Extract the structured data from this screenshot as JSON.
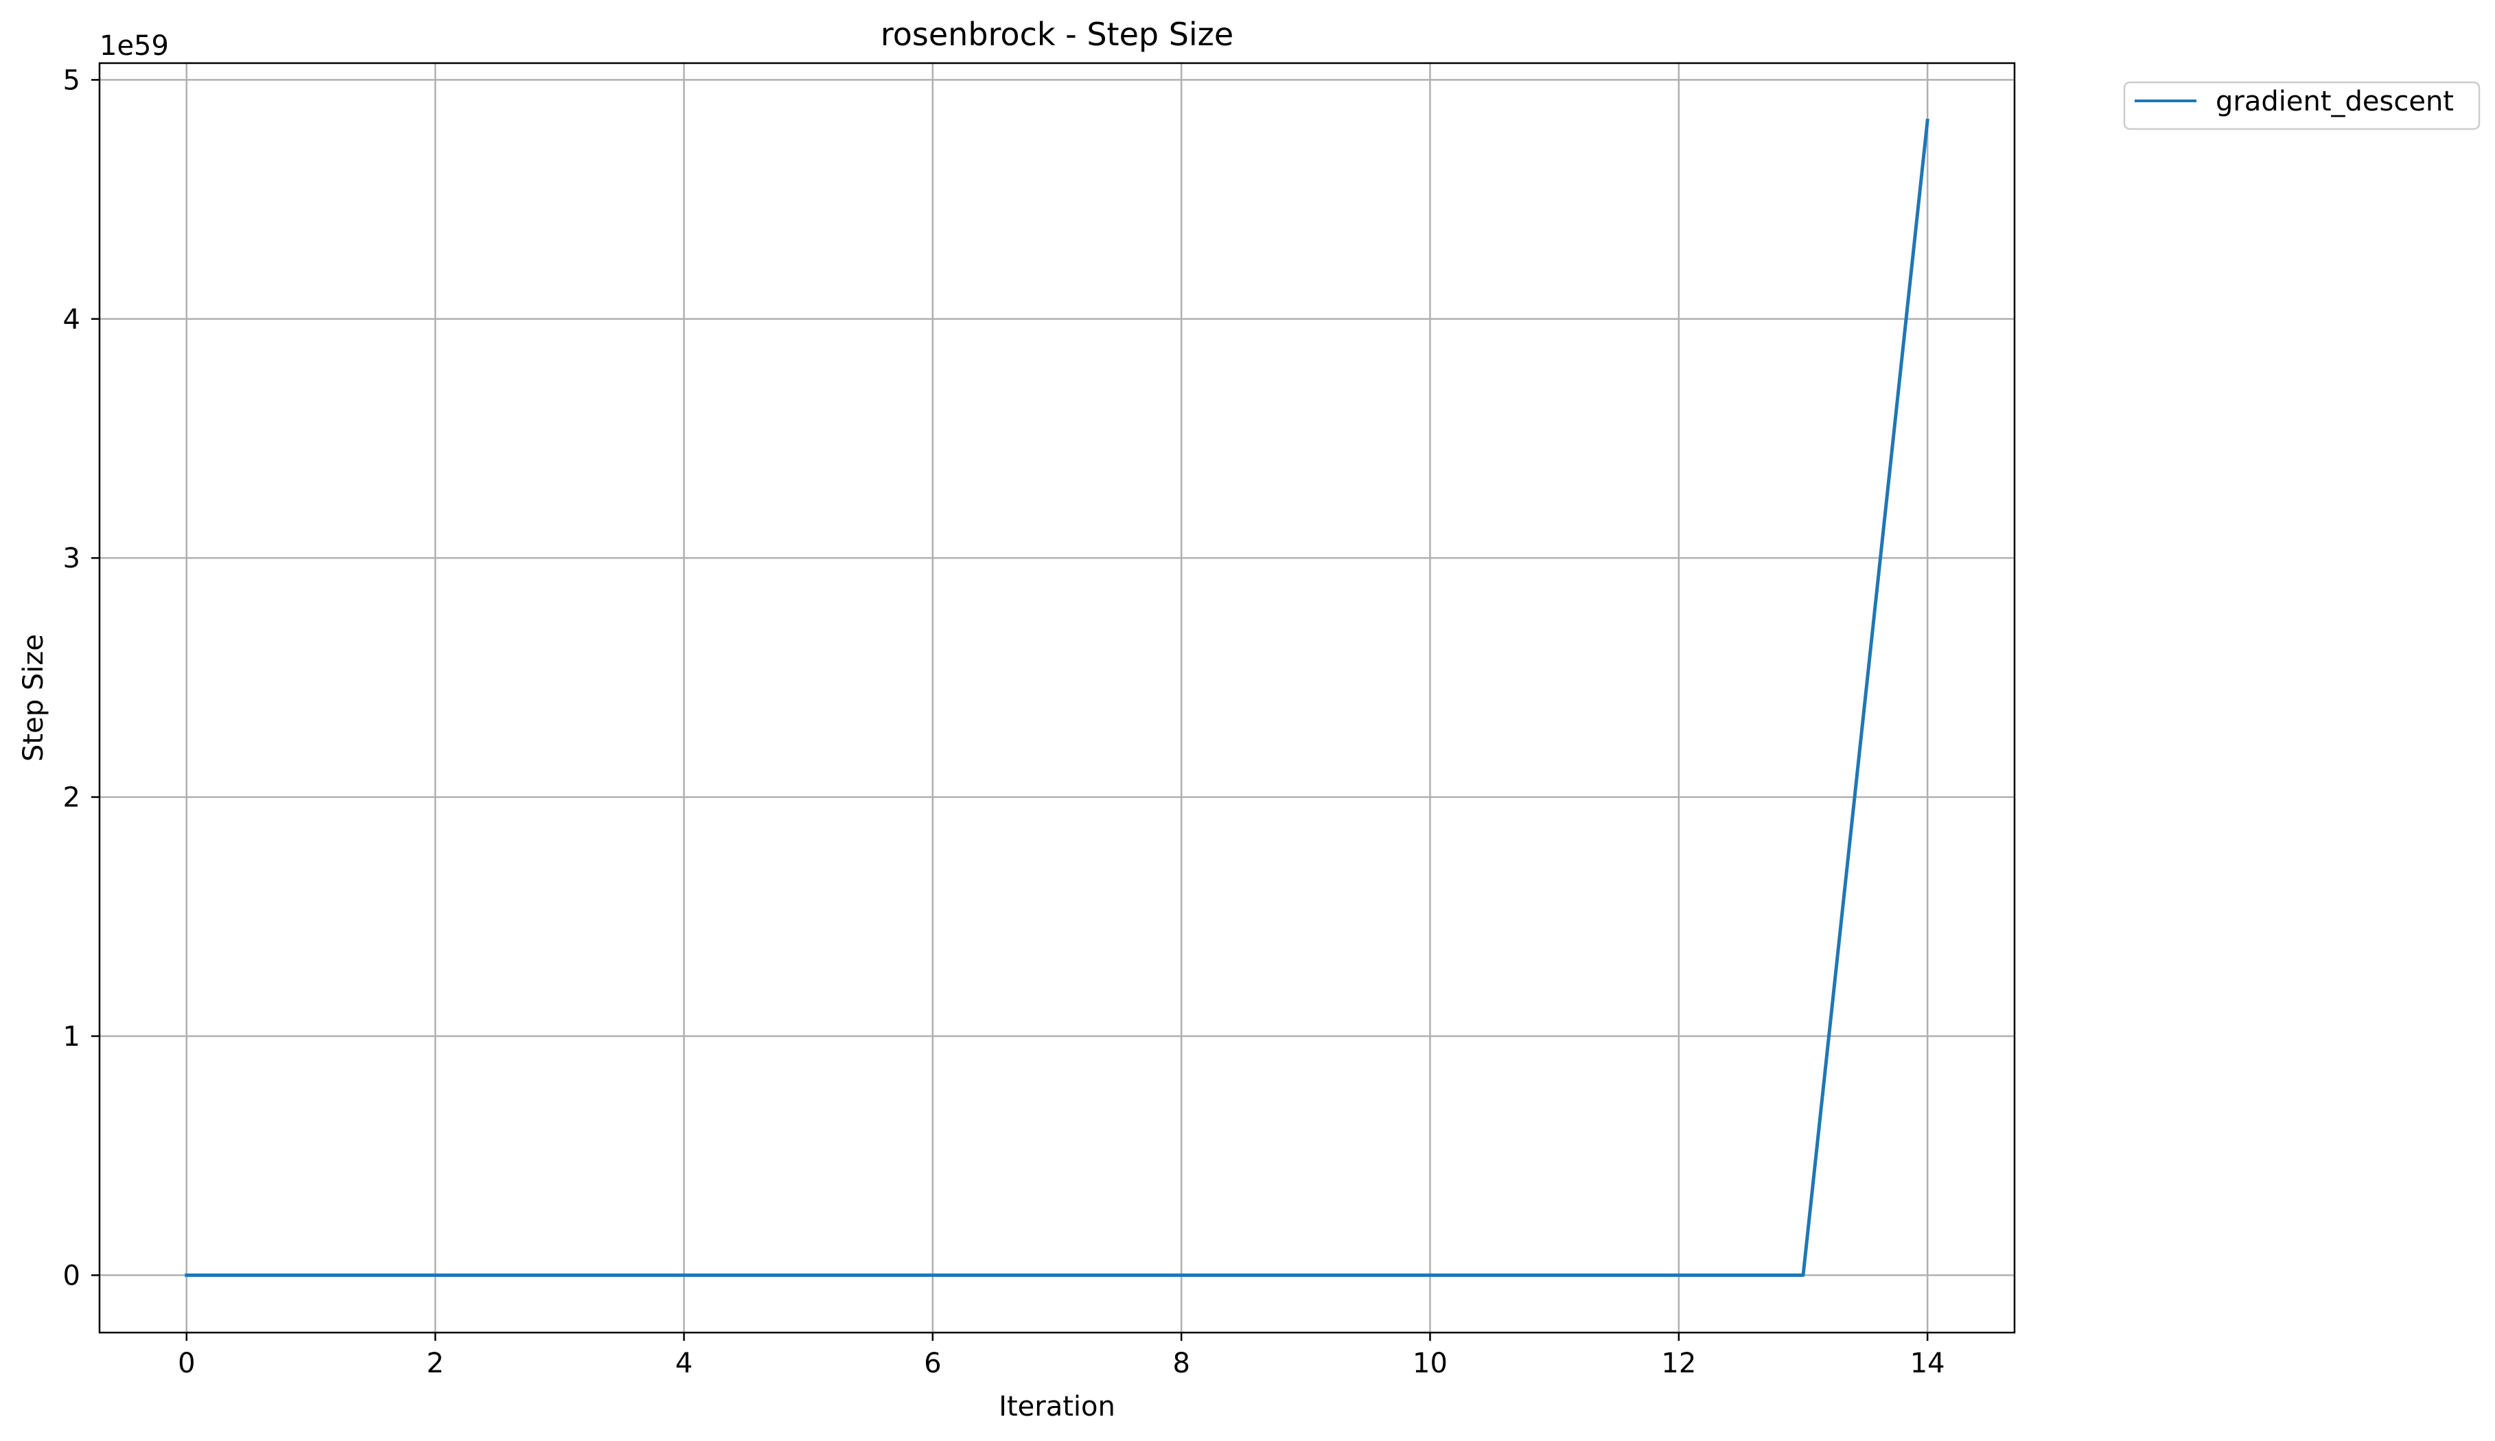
{
  "chart_data": {
    "type": "line",
    "title": "rosenbrock - Step Size",
    "xlabel": "Iteration",
    "ylabel": "Step Size",
    "y_offset_label": "1e59",
    "xlim": [
      -0.7,
      14.7
    ],
    "ylim": [
      -0.24,
      5.07
    ],
    "x_ticks": [
      0,
      2,
      4,
      6,
      8,
      10,
      12,
      14
    ],
    "x_tick_labels": [
      "0",
      "2",
      "4",
      "6",
      "8",
      "10",
      "12",
      "14"
    ],
    "y_ticks": [
      0,
      1,
      2,
      3,
      4,
      5
    ],
    "y_tick_labels": [
      "0",
      "1",
      "2",
      "3",
      "4",
      "5"
    ],
    "grid": true,
    "legend_position": "outside upper right",
    "x": [
      0,
      1,
      2,
      3,
      4,
      5,
      6,
      7,
      8,
      9,
      10,
      11,
      12,
      13,
      14
    ],
    "series": [
      {
        "name": "gradient_descent",
        "color": "#1f77b4",
        "values": [
          0,
          0,
          0,
          0,
          0,
          0,
          0,
          0,
          0,
          0,
          0,
          0,
          0,
          0,
          4.83
        ]
      }
    ]
  }
}
